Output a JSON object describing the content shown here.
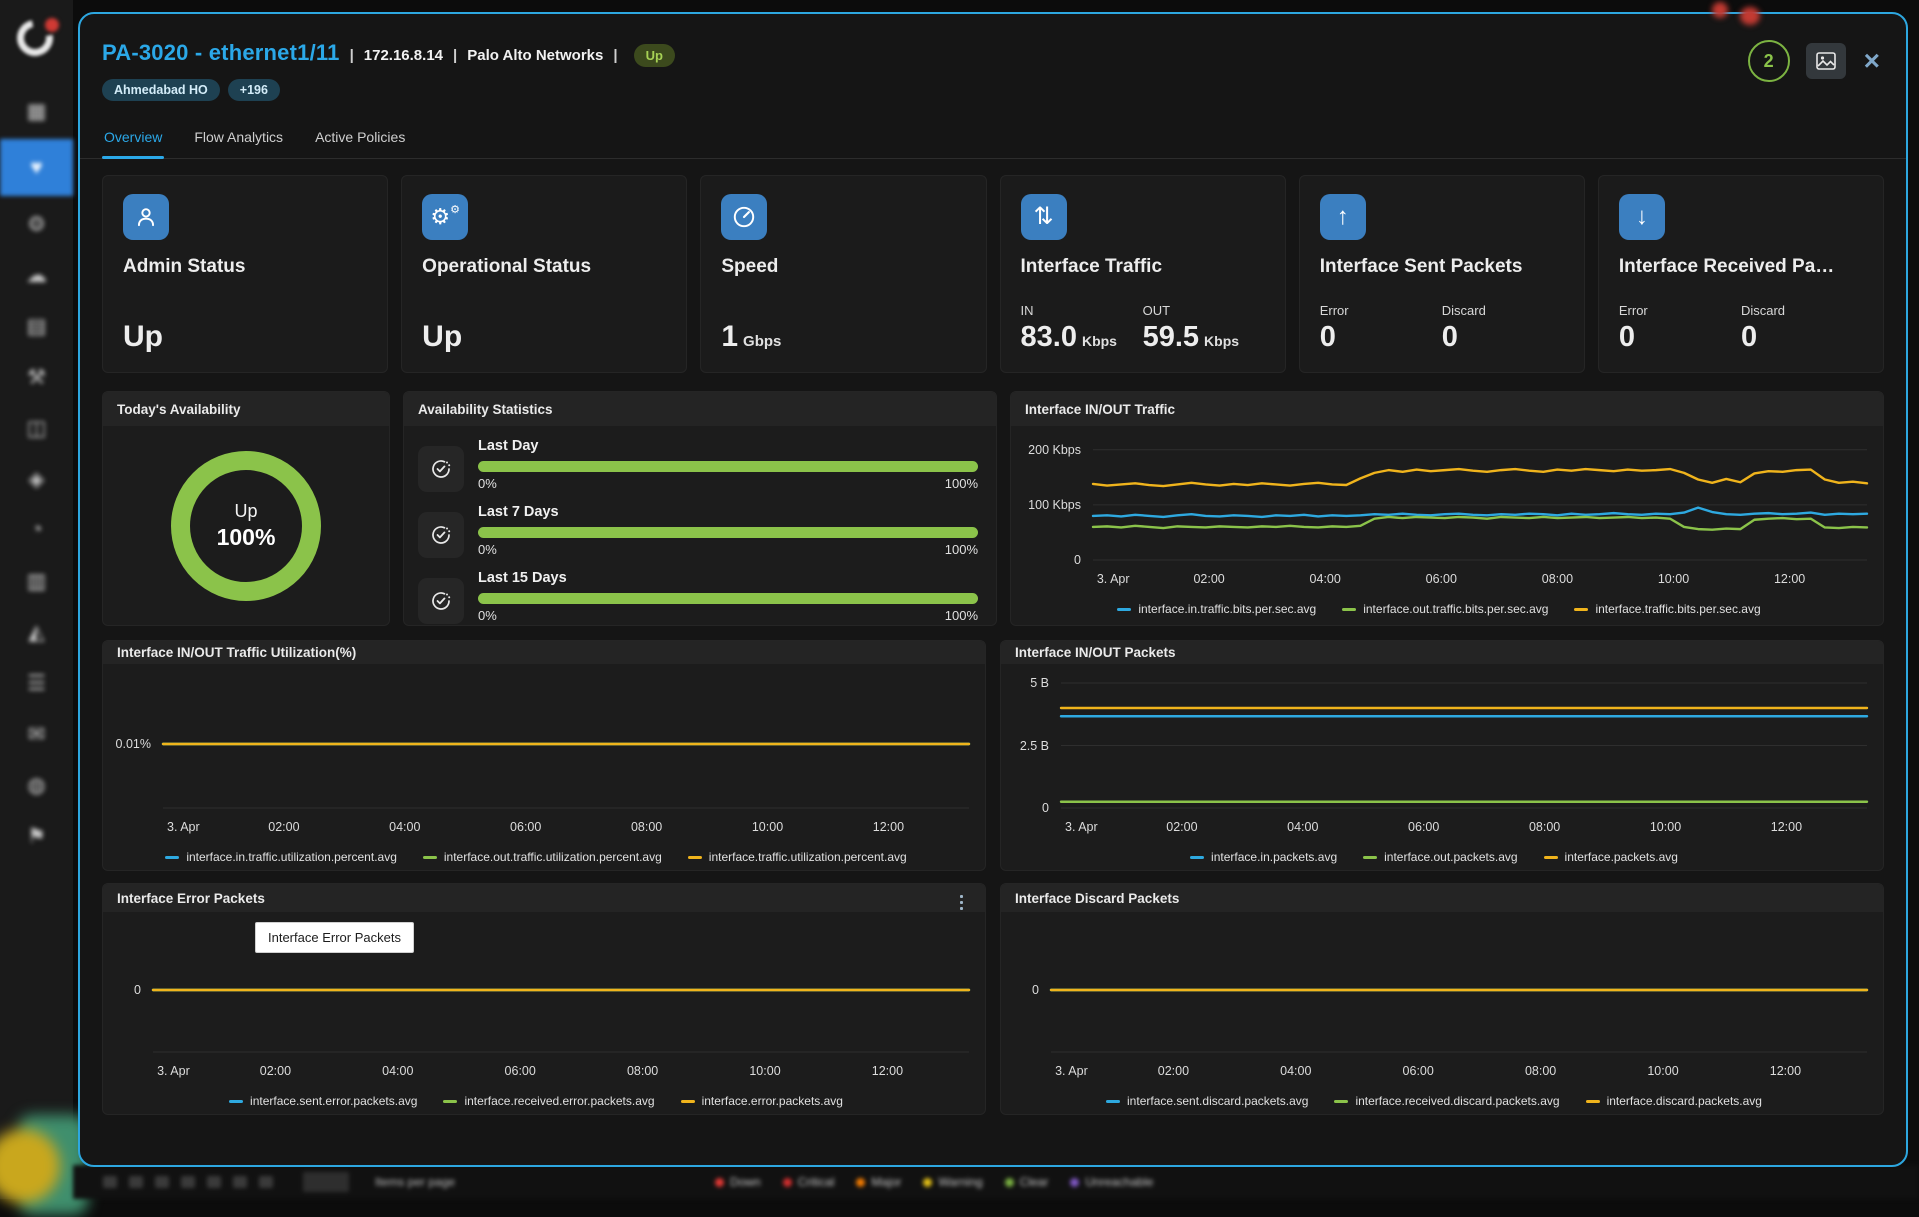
{
  "header": {
    "title": "PA-3020 - ethernet1/11",
    "sep": "|",
    "ip": "172.16.8.14",
    "vendor": "Palo Alto Networks",
    "status_badge": "Up",
    "location_badge": "Ahmedabad HO",
    "more_badge": "+196",
    "alert_count": "2",
    "close_glyph": "×"
  },
  "tabs": [
    {
      "label": "Overview",
      "active": true
    },
    {
      "label": "Flow Analytics",
      "active": false
    },
    {
      "label": "Active Policies",
      "active": false
    }
  ],
  "stats": [
    {
      "title": "Admin Status",
      "icon": "user-icon",
      "value": "Up"
    },
    {
      "title": "Operational Status",
      "icon": "gear-icon",
      "value": "Up"
    },
    {
      "title": "Speed",
      "icon": "speedometer-icon",
      "value": "1",
      "unit": "Gbps"
    },
    {
      "title": "Interface Traffic",
      "icon": "arrows-up-down-icon",
      "metrics": [
        {
          "label": "IN",
          "value": "83.0",
          "unit": "Kbps"
        },
        {
          "label": "OUT",
          "value": "59.5",
          "unit": "Kbps"
        }
      ]
    },
    {
      "title": "Interface Sent Packets",
      "icon": "arrow-up-icon",
      "metrics": [
        {
          "label": "Error",
          "value": "0",
          "unit": ""
        },
        {
          "label": "Discard",
          "value": "0",
          "unit": ""
        }
      ]
    },
    {
      "title": "Interface Received Pa…",
      "icon": "arrow-down-icon",
      "metrics": [
        {
          "label": "Error",
          "value": "0",
          "unit": ""
        },
        {
          "label": "Discard",
          "value": "0",
          "unit": ""
        }
      ]
    }
  ],
  "availability": {
    "today_title": "Today's Availability",
    "donut": {
      "status": "Up",
      "percent": "100%",
      "color": "#8bc34a"
    },
    "stats_title": "Availability Statistics",
    "rows": [
      {
        "label": "Last Day",
        "min": "0%",
        "max": "100%",
        "value": 100
      },
      {
        "label": "Last 7 Days",
        "min": "0%",
        "max": "100%",
        "value": 100
      },
      {
        "label": "Last 15 Days",
        "min": "0%",
        "max": "100%",
        "value": 100
      }
    ]
  },
  "chart_data": {
    "traffic": {
      "type": "line",
      "title": "Interface IN/OUT Traffic",
      "ylim": [
        0,
        214
      ],
      "ylw": 82,
      "yticks": [
        {
          "label": "200 Kbps",
          "v": 200
        },
        {
          "label": "100 Kbps",
          "v": 100
        },
        {
          "label": "0",
          "v": 0
        }
      ],
      "gridlines": [
        200,
        100,
        0
      ],
      "xticks": [
        {
          "label": "3. Apr",
          "f": 0.005
        },
        {
          "label": "02:00",
          "f": 0.15
        },
        {
          "label": "04:00",
          "f": 0.3
        },
        {
          "label": "06:00",
          "f": 0.45
        },
        {
          "label": "08:00",
          "f": 0.6
        },
        {
          "label": "10:00",
          "f": 0.75
        },
        {
          "label": "12:00",
          "f": 0.9
        }
      ],
      "series": [
        {
          "name": "interface.in.traffic.bits.per.sec.avg",
          "color": "#2ea9e0",
          "values": [
            80,
            81,
            79,
            82,
            80,
            78,
            81,
            83,
            80,
            79,
            81,
            80,
            78,
            81,
            80,
            82,
            79,
            81,
            80,
            81,
            83,
            82,
            84,
            82,
            81,
            83,
            84,
            82,
            81,
            83,
            82,
            84,
            83,
            81,
            84,
            82,
            83,
            85,
            83,
            82,
            84,
            83,
            86,
            95,
            87,
            83,
            82,
            84,
            85,
            83,
            84,
            86,
            82,
            84,
            83,
            84
          ]
        },
        {
          "name": "interface.out.traffic.bits.per.sec.avg",
          "color": "#8bc34a",
          "values": [
            60,
            61,
            59,
            62,
            60,
            58,
            61,
            60,
            59,
            61,
            60,
            59,
            61,
            60,
            62,
            60,
            59,
            61,
            60,
            62,
            75,
            78,
            76,
            78,
            77,
            76,
            78,
            77,
            75,
            78,
            77,
            76,
            78,
            76,
            77,
            78,
            76,
            77,
            78,
            76,
            77,
            75,
            60,
            56,
            55,
            57,
            56,
            73,
            75,
            76,
            74,
            75,
            59,
            58,
            60,
            59
          ]
        },
        {
          "name": "interface.traffic.bits.per.sec.avg",
          "color": "#f0b41c",
          "values": [
            138,
            135,
            137,
            139,
            136,
            134,
            137,
            140,
            137,
            135,
            138,
            136,
            139,
            137,
            135,
            138,
            140,
            137,
            136,
            148,
            158,
            163,
            160,
            164,
            161,
            163,
            165,
            162,
            160,
            163,
            165,
            162,
            160,
            164,
            162,
            165,
            163,
            161,
            164,
            162,
            163,
            165,
            158,
            146,
            140,
            147,
            141,
            157,
            161,
            160,
            163,
            164,
            146,
            140,
            142,
            139
          ]
        }
      ]
    },
    "utilization": {
      "type": "line",
      "title": "Interface IN/OUT Traffic Utilization(%)",
      "ylim": [
        0,
        0.02
      ],
      "ylw": 60,
      "yticks": [
        {
          "label": "0.01%",
          "v": 0.01
        }
      ],
      "gridlines": [
        0.01,
        0
      ],
      "xticks": [
        {
          "label": "3. Apr",
          "f": 0.005
        },
        {
          "label": "02:00",
          "f": 0.15
        },
        {
          "label": "04:00",
          "f": 0.3
        },
        {
          "label": "06:00",
          "f": 0.45
        },
        {
          "label": "08:00",
          "f": 0.6
        },
        {
          "label": "10:00",
          "f": 0.75
        },
        {
          "label": "12:00",
          "f": 0.9
        }
      ],
      "series": [
        {
          "name": "interface.in.traffic.utilization.percent.avg",
          "color": "#2ea9e0",
          "values": [
            0.01,
            0.01
          ]
        },
        {
          "name": "interface.out.traffic.utilization.percent.avg",
          "color": "#8bc34a",
          "values": [
            0.01,
            0.01
          ]
        },
        {
          "name": "interface.traffic.utilization.percent.avg",
          "color": "#f0b41c",
          "values": [
            0.01,
            0.01
          ]
        }
      ]
    },
    "packets": {
      "type": "line",
      "title": "Interface IN/OUT Packets",
      "ylim": [
        0,
        5.12
      ],
      "ylw": 60,
      "yticks": [
        {
          "label": "5 B",
          "v": 5
        },
        {
          "label": "2.5 B",
          "v": 2.5
        },
        {
          "label": "0",
          "v": 0
        }
      ],
      "gridlines": [
        5,
        2.5,
        0
      ],
      "xticks": [
        {
          "label": "3. Apr",
          "f": 0.005
        },
        {
          "label": "02:00",
          "f": 0.15
        },
        {
          "label": "04:00",
          "f": 0.3
        },
        {
          "label": "06:00",
          "f": 0.45
        },
        {
          "label": "08:00",
          "f": 0.6
        },
        {
          "label": "10:00",
          "f": 0.75
        },
        {
          "label": "12:00",
          "f": 0.9
        }
      ],
      "series": [
        {
          "name": "interface.in.packets.avg",
          "color": "#2ea9e0",
          "values": [
            3.67,
            3.67
          ]
        },
        {
          "name": "interface.out.packets.avg",
          "color": "#8bc34a",
          "values": [
            0.25,
            0.25
          ]
        },
        {
          "name": "interface.packets.avg",
          "color": "#f0b41c",
          "values": [
            4.0,
            4.0
          ]
        }
      ]
    },
    "errors": {
      "type": "line",
      "title": "Interface Error Packets",
      "tooltip": "Interface Error Packets",
      "ylim": [
        -1,
        1
      ],
      "ylw": 50,
      "yticks": [
        {
          "label": "0",
          "v": 0
        }
      ],
      "gridlines": [
        0,
        -1
      ],
      "xticks": [
        {
          "label": "3. Apr",
          "f": 0.005
        },
        {
          "label": "02:00",
          "f": 0.15
        },
        {
          "label": "04:00",
          "f": 0.3
        },
        {
          "label": "06:00",
          "f": 0.45
        },
        {
          "label": "08:00",
          "f": 0.6
        },
        {
          "label": "10:00",
          "f": 0.75
        },
        {
          "label": "12:00",
          "f": 0.9
        }
      ],
      "series": [
        {
          "name": "interface.sent.error.packets.avg",
          "color": "#2ea9e0",
          "values": [
            0,
            0
          ]
        },
        {
          "name": "interface.received.error.packets.avg",
          "color": "#8bc34a",
          "values": [
            0,
            0
          ]
        },
        {
          "name": "interface.error.packets.avg",
          "color": "#f0b41c",
          "values": [
            0,
            0
          ]
        }
      ]
    },
    "discards": {
      "type": "line",
      "title": "Interface Discard Packets",
      "ylim": [
        -1,
        1
      ],
      "ylw": 50,
      "yticks": [
        {
          "label": "0",
          "v": 0
        }
      ],
      "gridlines": [
        0,
        -1
      ],
      "xticks": [
        {
          "label": "3. Apr",
          "f": 0.005
        },
        {
          "label": "02:00",
          "f": 0.15
        },
        {
          "label": "04:00",
          "f": 0.3
        },
        {
          "label": "06:00",
          "f": 0.45
        },
        {
          "label": "08:00",
          "f": 0.6
        },
        {
          "label": "10:00",
          "f": 0.75
        },
        {
          "label": "12:00",
          "f": 0.9
        }
      ],
      "series": [
        {
          "name": "interface.sent.discard.packets.avg",
          "color": "#2ea9e0",
          "values": [
            0,
            0
          ]
        },
        {
          "name": "interface.received.discard.packets.avg",
          "color": "#8bc34a",
          "values": [
            0,
            0
          ]
        },
        {
          "name": "interface.discard.packets.avg",
          "color": "#f0b41c",
          "values": [
            0,
            0
          ]
        }
      ]
    }
  },
  "sidebar": {
    "icons": [
      {
        "name": "sidebar-item-grid",
        "glyph": "▦",
        "active": false
      },
      {
        "name": "sidebar-item-monitor-active",
        "glyph": "♥",
        "active": true
      },
      {
        "name": "sidebar-item-settings",
        "glyph": "⚙",
        "active": false
      },
      {
        "name": "sidebar-item-cloud",
        "glyph": "☁",
        "active": false
      },
      {
        "name": "sidebar-item-inventory",
        "glyph": "▤",
        "active": false
      },
      {
        "name": "sidebar-item-tools",
        "glyph": "⚒",
        "active": false
      },
      {
        "name": "sidebar-item-devices",
        "glyph": "◫",
        "active": false
      },
      {
        "name": "sidebar-item-topology",
        "glyph": "◈",
        "active": false
      },
      {
        "name": "sidebar-item-reports",
        "glyph": "◔",
        "active": false
      },
      {
        "name": "sidebar-item-logs",
        "glyph": "▥",
        "active": false
      },
      {
        "name": "sidebar-item-analytics",
        "glyph": "◭",
        "active": false
      },
      {
        "name": "sidebar-item-menu",
        "glyph": "☰",
        "active": false
      },
      {
        "name": "sidebar-item-messages",
        "glyph": "✉",
        "active": false
      },
      {
        "name": "sidebar-item-agents",
        "glyph": "◍",
        "active": false
      },
      {
        "name": "sidebar-item-admin",
        "glyph": "⚑",
        "active": false
      }
    ]
  },
  "footer": {
    "items_per_page": "Items per page",
    "statuses": [
      {
        "label": "Down",
        "color": "#e53935"
      },
      {
        "label": "Critical",
        "color": "#d32f2f"
      },
      {
        "label": "Major",
        "color": "#f57c00"
      },
      {
        "label": "Warning",
        "color": "#e5c117"
      },
      {
        "label": "Clear",
        "color": "#7cb342"
      },
      {
        "label": "Unreachable",
        "color": "#7e57c2"
      }
    ]
  }
}
